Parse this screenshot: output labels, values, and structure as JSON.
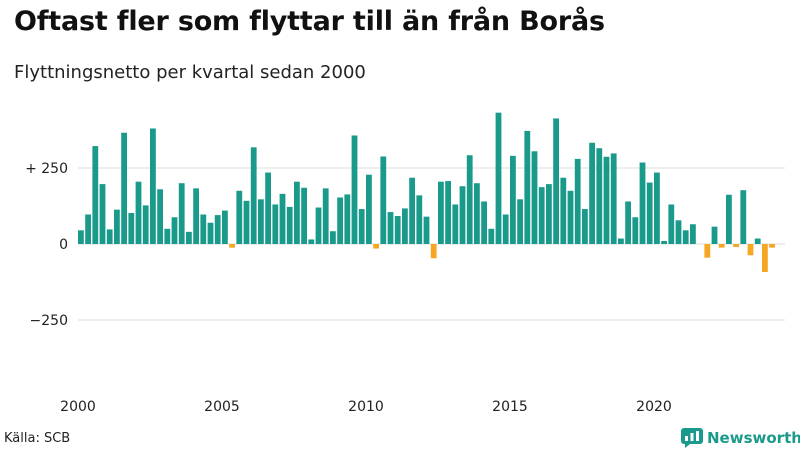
{
  "title": "Oftast fler som flyttar till än från Borås",
  "subtitle": "Flyttningsnetto per kvartal sedan 2000",
  "source": "Källa: SCB",
  "brand": {
    "name": "Newsworthy",
    "logo_icon": "newsworthy-logo-icon"
  },
  "colors": {
    "positive": "#1a9a8a",
    "negative": "#f5a623",
    "grid": "#dddddd"
  },
  "chart_data": {
    "type": "bar",
    "x_start": "2000 Q1",
    "x_ticks": [
      "2000",
      "2005",
      "2010",
      "2015",
      "2020"
    ],
    "y_ticks": [
      "+ 250",
      "0",
      "−250"
    ],
    "y_tick_values": [
      250,
      0,
      -250
    ],
    "ylim": [
      -500,
      450
    ],
    "grid": true,
    "values": [
      45,
      97,
      322,
      197,
      48,
      113,
      366,
      102,
      205,
      127,
      380,
      180,
      50,
      88,
      200,
      40,
      183,
      97,
      70,
      95,
      110,
      -12,
      175,
      142,
      318,
      147,
      235,
      130,
      165,
      122,
      205,
      185,
      15,
      120,
      183,
      42,
      153,
      163,
      357,
      115,
      228,
      -15,
      288,
      105,
      92,
      117,
      218,
      160,
      90,
      -47,
      205,
      207,
      130,
      190,
      292,
      200,
      140,
      50,
      432,
      97,
      290,
      147,
      372,
      305,
      187,
      197,
      413,
      218,
      175,
      280,
      115,
      333,
      315,
      287,
      298,
      18,
      140,
      88,
      268,
      202,
      235,
      10,
      130,
      78,
      45,
      65,
      0,
      -45,
      57,
      -12,
      162,
      -10,
      177,
      -37,
      18,
      -92,
      -12
    ]
  }
}
